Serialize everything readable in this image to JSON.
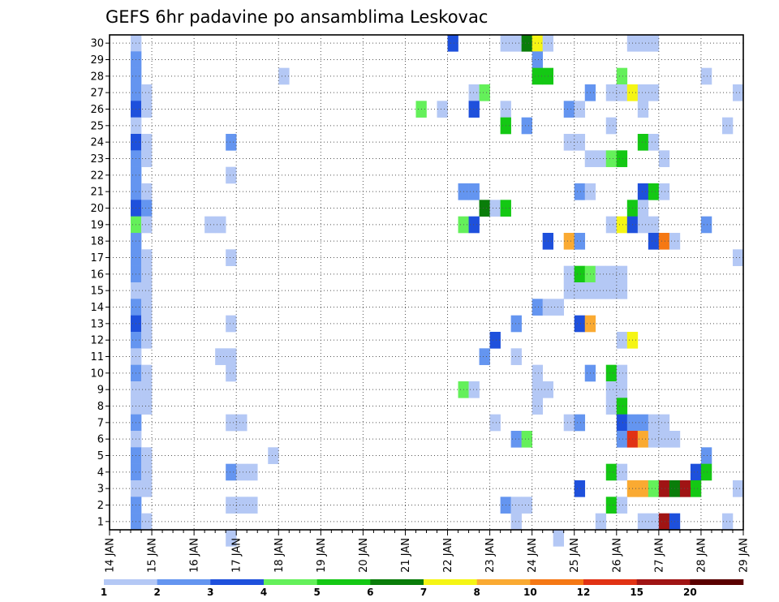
{
  "chart_data": {
    "type": "heatmap",
    "title": "GEFS 6hr padavine po ansamblima Leskovac",
    "xlabel": "",
    "ylabel": "",
    "x_ticks": [
      "14 JAN",
      "15 JAN",
      "16 JAN",
      "17 JAN",
      "18 JAN",
      "19 JAN",
      "20 JAN",
      "21 JAN",
      "22 JAN",
      "23 JAN",
      "24 JAN",
      "25 JAN",
      "26 JAN",
      "27 JAN",
      "28 JAN",
      "29 JAN"
    ],
    "y_ticks": [
      "1",
      "2",
      "3",
      "4",
      "5",
      "6",
      "7",
      "8",
      "9",
      "10",
      "11",
      "12",
      "13",
      "14",
      "15",
      "16",
      "17",
      "18",
      "19",
      "20",
      "21",
      "22",
      "23",
      "24",
      "25",
      "26",
      "27",
      "28",
      "29",
      "30"
    ],
    "xlim": [
      0,
      60
    ],
    "ylim": [
      0.5,
      30.5
    ],
    "grid": true,
    "legend": {
      "placement": "bottom",
      "labels": [
        "1",
        "2",
        "3",
        "4",
        "5",
        "6",
        "7",
        "8",
        "10",
        "12",
        "15",
        "20"
      ],
      "colors": [
        "#b4c8f5",
        "#6495f0",
        "#1e50dc",
        "#64f05a",
        "#14c814",
        "#0a7d0a",
        "#f5f514",
        "#faaa32",
        "#f57814",
        "#e13214",
        "#a01414",
        "#5a0000"
      ]
    },
    "levels": [
      "1",
      "2",
      "3",
      "4",
      "5",
      "6",
      "7",
      "8",
      "10",
      "12",
      "15",
      "20"
    ],
    "cells": [
      [
        30,
        [
          [
            2,
            1
          ],
          [
            32,
            3
          ],
          [
            37,
            1
          ],
          [
            38,
            1
          ],
          [
            39,
            6
          ],
          [
            40,
            7
          ],
          [
            41,
            1
          ],
          [
            49,
            1
          ],
          [
            50,
            1
          ],
          [
            51,
            1
          ]
        ]
      ],
      [
        29,
        [
          [
            2,
            2
          ],
          [
            40,
            2
          ]
        ]
      ],
      [
        28,
        [
          [
            2,
            2
          ],
          [
            16,
            1
          ],
          [
            40,
            5
          ],
          [
            41,
            5
          ],
          [
            48,
            4
          ],
          [
            56,
            1
          ]
        ]
      ],
      [
        27,
        [
          [
            2,
            2
          ],
          [
            3,
            1
          ],
          [
            34,
            1
          ],
          [
            35,
            4
          ],
          [
            45,
            2
          ],
          [
            47,
            1
          ],
          [
            48,
            1
          ],
          [
            49,
            7
          ],
          [
            50,
            1
          ],
          [
            51,
            1
          ],
          [
            59,
            1
          ]
        ]
      ],
      [
        26,
        [
          [
            2,
            3
          ],
          [
            3,
            1
          ],
          [
            29,
            4
          ],
          [
            31,
            1
          ],
          [
            34,
            3
          ],
          [
            37,
            1
          ],
          [
            43,
            2
          ],
          [
            44,
            1
          ],
          [
            50,
            1
          ]
        ]
      ],
      [
        25,
        [
          [
            2,
            1
          ],
          [
            37,
            5
          ],
          [
            39,
            2
          ],
          [
            47,
            1
          ],
          [
            58,
            1
          ]
        ]
      ],
      [
        24,
        [
          [
            2,
            3
          ],
          [
            3,
            1
          ],
          [
            11,
            2
          ],
          [
            43,
            1
          ],
          [
            44,
            1
          ],
          [
            50,
            5
          ],
          [
            51,
            1
          ]
        ]
      ],
      [
        23,
        [
          [
            2,
            2
          ],
          [
            3,
            1
          ],
          [
            45,
            1
          ],
          [
            46,
            1
          ],
          [
            47,
            4
          ],
          [
            48,
            5
          ],
          [
            52,
            1
          ]
        ]
      ],
      [
        22,
        [
          [
            2,
            2
          ],
          [
            11,
            1
          ]
        ]
      ],
      [
        21,
        [
          [
            2,
            2
          ],
          [
            3,
            1
          ],
          [
            33,
            2
          ],
          [
            34,
            2
          ],
          [
            44,
            2
          ],
          [
            45,
            1
          ],
          [
            50,
            3
          ],
          [
            51,
            5
          ],
          [
            52,
            1
          ]
        ]
      ],
      [
        20,
        [
          [
            2,
            3
          ],
          [
            3,
            2
          ],
          [
            35,
            6
          ],
          [
            36,
            1
          ],
          [
            37,
            5
          ],
          [
            49,
            5
          ],
          [
            50,
            1
          ]
        ]
      ],
      [
        19,
        [
          [
            2,
            4
          ],
          [
            3,
            1
          ],
          [
            9,
            1
          ],
          [
            10,
            1
          ],
          [
            33,
            4
          ],
          [
            34,
            3
          ],
          [
            47,
            1
          ],
          [
            48,
            7
          ],
          [
            49,
            3
          ],
          [
            50,
            1
          ],
          [
            51,
            1
          ],
          [
            56,
            2
          ]
        ]
      ],
      [
        18,
        [
          [
            2,
            2
          ],
          [
            41,
            3
          ],
          [
            43,
            8
          ],
          [
            44,
            2
          ],
          [
            51,
            3
          ],
          [
            52,
            9
          ],
          [
            53,
            1
          ]
        ]
      ],
      [
        17,
        [
          [
            2,
            2
          ],
          [
            3,
            1
          ],
          [
            11,
            1
          ],
          [
            59,
            1
          ]
        ]
      ],
      [
        16,
        [
          [
            2,
            2
          ],
          [
            3,
            1
          ],
          [
            43,
            1
          ],
          [
            44,
            5
          ],
          [
            45,
            4
          ],
          [
            46,
            1
          ],
          [
            47,
            1
          ],
          [
            48,
            1
          ]
        ]
      ],
      [
        15,
        [
          [
            2,
            1
          ],
          [
            3,
            1
          ],
          [
            43,
            1
          ],
          [
            44,
            1
          ],
          [
            45,
            1
          ],
          [
            46,
            1
          ],
          [
            47,
            1
          ],
          [
            48,
            1
          ]
        ]
      ],
      [
        14,
        [
          [
            2,
            2
          ],
          [
            3,
            1
          ],
          [
            40,
            2
          ],
          [
            41,
            1
          ],
          [
            42,
            1
          ]
        ]
      ],
      [
        13,
        [
          [
            2,
            3
          ],
          [
            3,
            1
          ],
          [
            11,
            1
          ],
          [
            38,
            2
          ],
          [
            44,
            3
          ],
          [
            45,
            8
          ]
        ]
      ],
      [
        12,
        [
          [
            2,
            2
          ],
          [
            3,
            1
          ],
          [
            36,
            3
          ],
          [
            48,
            1
          ],
          [
            49,
            7
          ]
        ]
      ],
      [
        11,
        [
          [
            2,
            1
          ],
          [
            10,
            1
          ],
          [
            11,
            1
          ],
          [
            35,
            2
          ],
          [
            38,
            1
          ]
        ]
      ],
      [
        10,
        [
          [
            2,
            2
          ],
          [
            3,
            1
          ],
          [
            11,
            1
          ],
          [
            40,
            1
          ],
          [
            45,
            2
          ],
          [
            47,
            5
          ],
          [
            48,
            1
          ]
        ]
      ],
      [
        9,
        [
          [
            2,
            1
          ],
          [
            3,
            1
          ],
          [
            33,
            4
          ],
          [
            34,
            1
          ],
          [
            40,
            1
          ],
          [
            41,
            1
          ],
          [
            47,
            1
          ],
          [
            48,
            1
          ]
        ]
      ],
      [
        8,
        [
          [
            2,
            1
          ],
          [
            3,
            1
          ],
          [
            40,
            1
          ],
          [
            47,
            1
          ],
          [
            48,
            5
          ]
        ]
      ],
      [
        7,
        [
          [
            2,
            2
          ],
          [
            11,
            1
          ],
          [
            12,
            1
          ],
          [
            36,
            1
          ],
          [
            43,
            1
          ],
          [
            44,
            2
          ],
          [
            48,
            3
          ],
          [
            49,
            2
          ],
          [
            50,
            2
          ],
          [
            51,
            1
          ],
          [
            52,
            1
          ]
        ]
      ],
      [
        6,
        [
          [
            2,
            1
          ],
          [
            38,
            2
          ],
          [
            39,
            4
          ],
          [
            48,
            2
          ],
          [
            49,
            10
          ],
          [
            50,
            8
          ],
          [
            51,
            1
          ],
          [
            52,
            1
          ],
          [
            53,
            1
          ]
        ]
      ],
      [
        5,
        [
          [
            2,
            2
          ],
          [
            3,
            1
          ],
          [
            15,
            1
          ],
          [
            56,
            2
          ]
        ]
      ],
      [
        4,
        [
          [
            2,
            2
          ],
          [
            3,
            1
          ],
          [
            11,
            2
          ],
          [
            12,
            1
          ],
          [
            13,
            1
          ],
          [
            47,
            5
          ],
          [
            48,
            1
          ],
          [
            55,
            3
          ],
          [
            56,
            5
          ]
        ]
      ],
      [
        3,
        [
          [
            2,
            1
          ],
          [
            3,
            1
          ],
          [
            44,
            3
          ],
          [
            49,
            8
          ],
          [
            50,
            8
          ],
          [
            51,
            4
          ],
          [
            52,
            11
          ],
          [
            53,
            6
          ],
          [
            54,
            11
          ],
          [
            55,
            5
          ],
          [
            59,
            1
          ]
        ]
      ],
      [
        2,
        [
          [
            2,
            2
          ],
          [
            11,
            1
          ],
          [
            12,
            1
          ],
          [
            13,
            1
          ],
          [
            37,
            2
          ],
          [
            38,
            1
          ],
          [
            39,
            1
          ],
          [
            47,
            5
          ],
          [
            48,
            1
          ]
        ]
      ],
      [
        1,
        [
          [
            2,
            2
          ],
          [
            3,
            1
          ],
          [
            38,
            1
          ],
          [
            46,
            1
          ],
          [
            50,
            1
          ],
          [
            51,
            1
          ],
          [
            52,
            11
          ],
          [
            53,
            3
          ],
          [
            58,
            1
          ]
        ]
      ],
      [
        0,
        [
          [
            11,
            1
          ],
          [
            42,
            1
          ]
        ]
      ]
    ]
  }
}
